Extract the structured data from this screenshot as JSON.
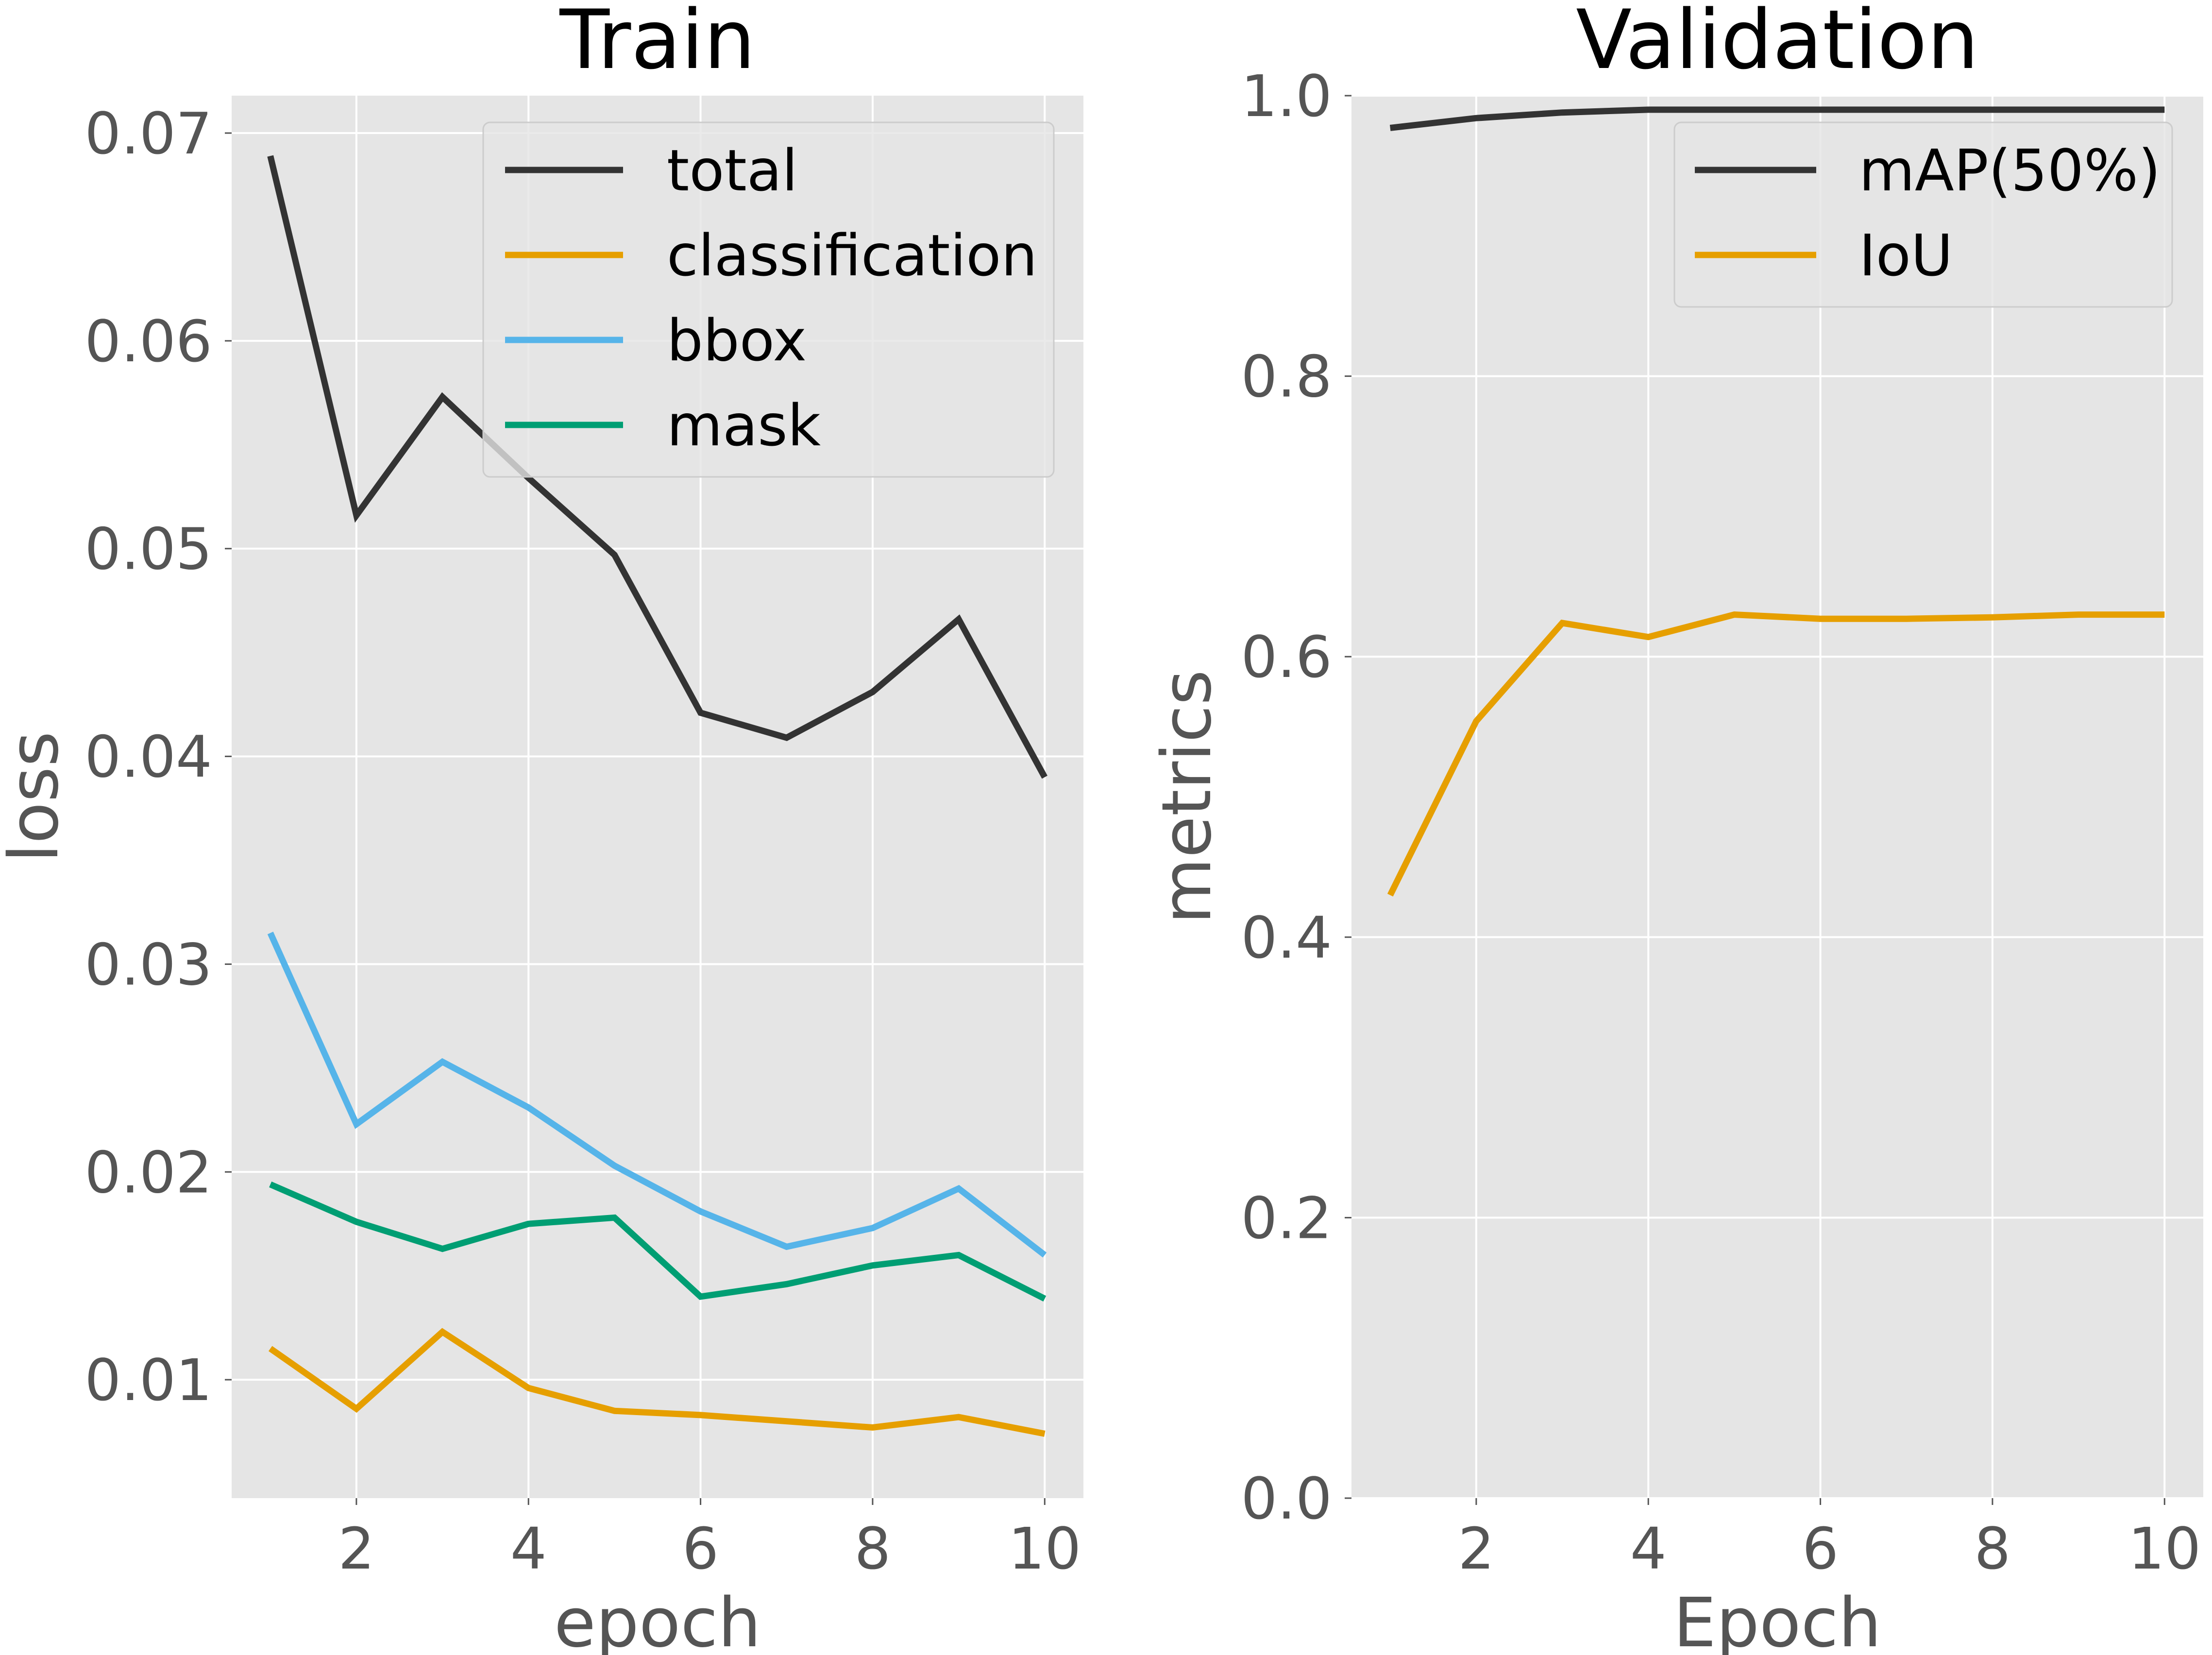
{
  "chart_data": [
    {
      "type": "line",
      "title": "Train",
      "xlabel": "epoch",
      "ylabel": "loss",
      "x": [
        1,
        2,
        3,
        4,
        5,
        6,
        7,
        8,
        9,
        10
      ],
      "xticks": [
        2,
        4,
        6,
        8,
        10
      ],
      "xtick_labels": [
        "2",
        "4",
        "6",
        "8",
        "10"
      ],
      "xlim": [
        0.55,
        10.45
      ],
      "yticks": [
        0.01,
        0.02,
        0.03,
        0.04,
        0.05,
        0.06,
        0.07
      ],
      "ytick_labels": [
        "0.01",
        "0.02",
        "0.03",
        "0.04",
        "0.05",
        "0.06",
        "0.07"
      ],
      "ylim": [
        0.0043,
        0.0718
      ],
      "grid": true,
      "legend_position": "top-right",
      "series": [
        {
          "name": "total",
          "color": "#333333",
          "values": [
            0.0689,
            0.0516,
            0.0573,
            0.0534,
            0.0497,
            0.0421,
            0.0409,
            0.0431,
            0.0466,
            0.039
          ]
        },
        {
          "name": "classification",
          "color": "#E69F00",
          "values": [
            0.0115,
            0.0086,
            0.0123,
            0.0096,
            0.0085,
            0.0083,
            0.008,
            0.0077,
            0.0082,
            0.0074
          ]
        },
        {
          "name": "bbox",
          "color": "#56B4E9",
          "values": [
            0.0315,
            0.0223,
            0.0253,
            0.0231,
            0.0203,
            0.0181,
            0.0164,
            0.0173,
            0.0192,
            0.016
          ]
        },
        {
          "name": "mask",
          "color": "#009E73",
          "values": [
            0.0194,
            0.0176,
            0.0163,
            0.0175,
            0.0178,
            0.014,
            0.0146,
            0.0155,
            0.016,
            0.0139
          ]
        }
      ]
    },
    {
      "type": "line",
      "title": "Validation",
      "xlabel": "Epoch",
      "ylabel": "metrics",
      "x": [
        1,
        2,
        3,
        4,
        5,
        6,
        7,
        8,
        9,
        10
      ],
      "xticks": [
        2,
        4,
        6,
        8,
        10
      ],
      "xtick_labels": [
        "2",
        "4",
        "6",
        "8",
        "10"
      ],
      "xlim": [
        0.55,
        10.45
      ],
      "yticks": [
        0.0,
        0.2,
        0.4,
        0.6,
        0.8,
        1.0
      ],
      "ytick_labels": [
        "0.0",
        "0.2",
        "0.4",
        "0.6",
        "0.8",
        "1.0"
      ],
      "ylim": [
        0.0,
        1.0
      ],
      "grid": true,
      "legend_position": "top-right",
      "series": [
        {
          "name": "mAP(50%)",
          "color": "#333333",
          "values": [
            0.977,
            0.984,
            0.988,
            0.99,
            0.99,
            0.99,
            0.99,
            0.99,
            0.99,
            0.99
          ]
        },
        {
          "name": "IoU",
          "color": "#E69F00",
          "values": [
            0.43,
            0.554,
            0.624,
            0.614,
            0.63,
            0.627,
            0.627,
            0.628,
            0.63,
            0.63
          ]
        }
      ]
    }
  ]
}
